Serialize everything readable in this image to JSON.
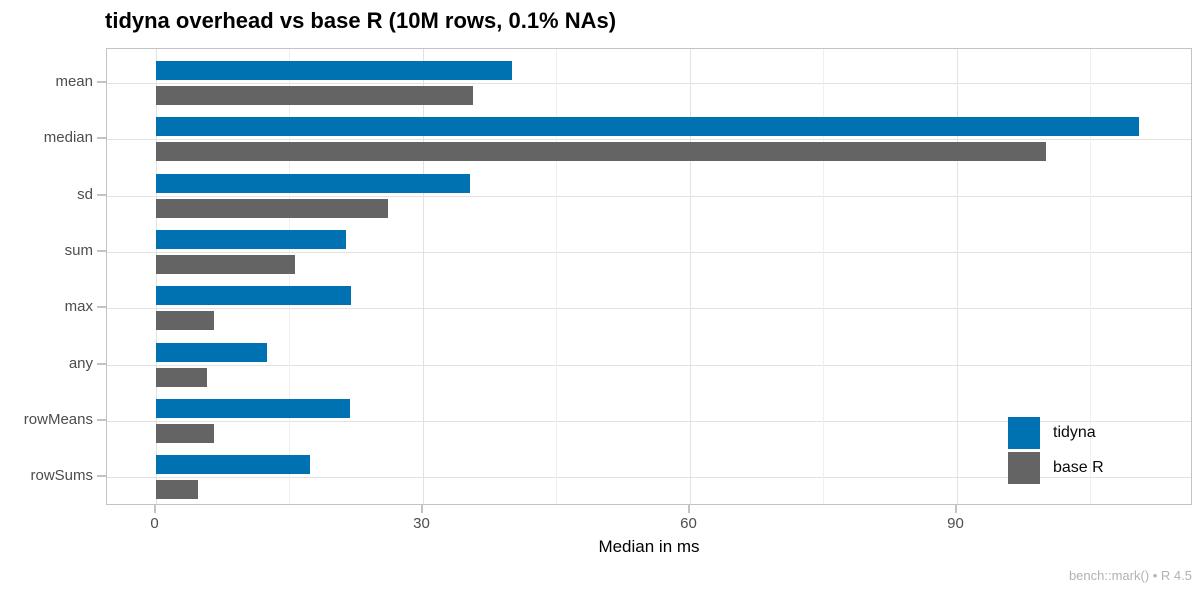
{
  "title": "tidyna overhead vs base R (10M rows, 0.1% NAs)",
  "caption": "bench::mark() • R 4.5",
  "colors": {
    "tidyna": "#0072B2",
    "base_r": "#646464",
    "grid_major": "#e2e2e2",
    "grid_minor": "#efefef",
    "axis_text": "#4d4d4d",
    "panel_border": "#c3c3c3"
  },
  "chart_data": {
    "type": "bar",
    "orientation": "horizontal",
    "title": "tidyna overhead vs base R (10M rows, 0.1% NAs)",
    "xlabel": "Median in ms",
    "ylabel": "",
    "categories": [
      "mean",
      "median",
      "sd",
      "sum",
      "max",
      "any",
      "rowMeans",
      "rowSums"
    ],
    "series": [
      {
        "name": "tidyna",
        "color": "#0072B2",
        "values": [
          40.0,
          110.5,
          35.3,
          21.4,
          22.0,
          12.5,
          21.9,
          17.4
        ]
      },
      {
        "name": "base R",
        "color": "#646464",
        "values": [
          35.7,
          100.0,
          26.1,
          15.7,
          6.6,
          5.8,
          6.6,
          4.8
        ]
      }
    ],
    "xlim": [
      -5.5,
      116.6
    ],
    "x_major_ticks": [
      0,
      30,
      60,
      90
    ],
    "x_tick_labels": [
      "0",
      "30",
      "60",
      "90"
    ],
    "x_minor_ticks": [
      15,
      45,
      75,
      105
    ],
    "grid": true,
    "legend_position": "inside-bottom-right"
  },
  "legend": {
    "items": [
      {
        "label": "tidyna",
        "color": "#0072B2"
      },
      {
        "label": "base R",
        "color": "#646464"
      }
    ]
  }
}
